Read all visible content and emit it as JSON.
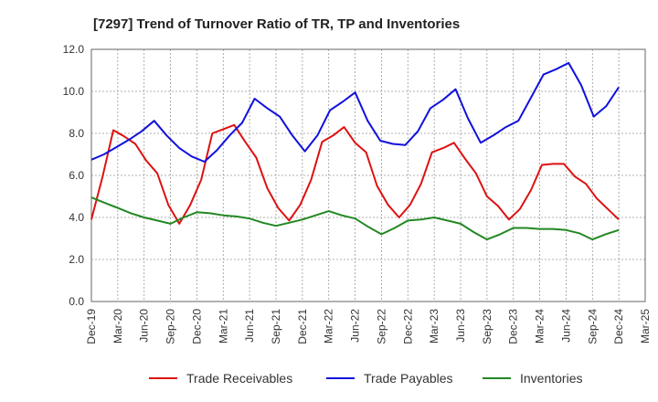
{
  "chart_data": {
    "type": "line",
    "title": "[7297]  Trend of Turnover Ratio of TR, TP and Inventories",
    "xlabel": "",
    "ylabel": "",
    "ylim": [
      0,
      12
    ],
    "yticks": [
      "0.0",
      "2.0",
      "4.0",
      "6.0",
      "8.0",
      "10.0",
      "12.0"
    ],
    "xticks": [
      "Dec-19",
      "Mar-20",
      "Jun-20",
      "Sep-20",
      "Dec-20",
      "Mar-21",
      "Jun-21",
      "Sep-21",
      "Dec-21",
      "Mar-22",
      "Jun-22",
      "Sep-22",
      "Dec-22",
      "Mar-23",
      "Jun-23",
      "Sep-23",
      "Dec-23",
      "Mar-24",
      "Jun-24",
      "Sep-24",
      "Dec-24",
      "Mar-25"
    ],
    "grid": true,
    "legend_position": "bottom",
    "series": [
      {
        "name": "Trade Receivables",
        "color": "#dd1111",
        "values": [
          3.9,
          5.9,
          8.15,
          7.85,
          7.5,
          6.7,
          6.1,
          4.6,
          3.7,
          4.6,
          5.8,
          8.0,
          8.2,
          8.4,
          7.6,
          6.85,
          5.4,
          4.45,
          3.85,
          4.6,
          5.8,
          7.6,
          7.9,
          8.3,
          7.55,
          7.1,
          5.5,
          4.6,
          4.0,
          4.6,
          5.6,
          7.1,
          7.3,
          7.55,
          6.8,
          6.1,
          5.0,
          4.55,
          3.9,
          4.4,
          5.3,
          6.5,
          6.55,
          6.55,
          5.95,
          5.6,
          4.9,
          4.4,
          3.9
        ]
      },
      {
        "name": "Trade Payables",
        "color": "#1111dd",
        "values": [
          6.75,
          7.0,
          7.35,
          7.7,
          8.1,
          8.6,
          7.9,
          7.3,
          6.9,
          6.65,
          7.2,
          7.9,
          8.5,
          9.65,
          9.2,
          8.8,
          7.9,
          7.15,
          7.9,
          9.1,
          9.5,
          9.95,
          8.6,
          7.65,
          7.5,
          7.45,
          8.1,
          9.2,
          9.6,
          10.1,
          8.7,
          7.55,
          7.9,
          8.3,
          8.6,
          9.7,
          10.8,
          11.05,
          11.35,
          10.3,
          8.8,
          9.3,
          10.2
        ]
      },
      {
        "name": "Inventories",
        "color": "#228822",
        "values": [
          4.95,
          4.7,
          4.45,
          4.2,
          4.0,
          3.85,
          3.7,
          4.0,
          4.25,
          4.2,
          4.1,
          4.05,
          3.95,
          3.75,
          3.6,
          3.75,
          3.9,
          4.1,
          4.3,
          4.1,
          3.95,
          3.55,
          3.2,
          3.5,
          3.85,
          3.9,
          4.0,
          3.85,
          3.7,
          3.3,
          2.95,
          3.2,
          3.5,
          3.5,
          3.45,
          3.45,
          3.4,
          3.25,
          2.95,
          3.2,
          3.4
        ]
      }
    ]
  }
}
